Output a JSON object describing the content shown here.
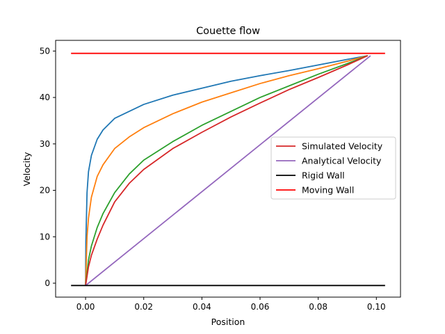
{
  "chart_data": {
    "type": "line",
    "title": "Couette flow",
    "xlabel": "Position",
    "ylabel": "Velocity",
    "xlim": [
      -0.0103,
      0.1083
    ],
    "ylim": [
      -3.0,
      52.3
    ],
    "xticks": [
      0.0,
      0.02,
      0.04,
      0.06,
      0.08,
      0.1
    ],
    "xtick_labels": [
      "0.00",
      "0.02",
      "0.04",
      "0.06",
      "0.08",
      "0.10"
    ],
    "yticks": [
      0,
      10,
      20,
      30,
      40,
      50
    ],
    "ytick_labels": [
      "0",
      "10",
      "20",
      "30",
      "40",
      "50"
    ],
    "grid": false,
    "legend_position": "center-right",
    "legend": [
      {
        "label": "Simulated Velocity",
        "color": "#d62728",
        "kind": "line"
      },
      {
        "label": "Analytical Velocity",
        "color": "#9467bd",
        "kind": "line"
      },
      {
        "label": "Rigid Wall",
        "color": "#000000",
        "kind": "line"
      },
      {
        "label": "Moving Wall",
        "color": "#ff0000",
        "kind": "line"
      }
    ],
    "series": [
      {
        "color": "#1f77b4",
        "x": [
          0.0,
          0.0001,
          0.0005,
          0.001,
          0.002,
          0.004,
          0.006,
          0.01,
          0.015,
          0.02,
          0.03,
          0.04,
          0.05,
          0.06,
          0.07,
          0.08,
          0.09,
          0.097
        ],
        "y": [
          -0.5,
          9.0,
          19.5,
          24.0,
          27.5,
          31.0,
          33.0,
          35.5,
          37.0,
          38.5,
          40.5,
          42.0,
          43.5,
          44.7,
          45.8,
          47.0,
          48.2,
          49.0
        ]
      },
      {
        "color": "#ff7f0e",
        "x": [
          0.0,
          0.0005,
          0.001,
          0.002,
          0.004,
          0.006,
          0.01,
          0.015,
          0.02,
          0.03,
          0.04,
          0.05,
          0.06,
          0.07,
          0.08,
          0.09,
          0.097
        ],
        "y": [
          -0.5,
          10.0,
          14.0,
          18.5,
          23.0,
          25.5,
          29.0,
          31.5,
          33.5,
          36.5,
          39.0,
          41.0,
          43.0,
          44.7,
          46.2,
          47.8,
          49.0
        ]
      },
      {
        "color": "#2ca02c",
        "x": [
          0.0,
          0.001,
          0.002,
          0.004,
          0.006,
          0.01,
          0.015,
          0.02,
          0.03,
          0.04,
          0.05,
          0.06,
          0.07,
          0.08,
          0.09,
          0.097
        ],
        "y": [
          -0.5,
          5.0,
          8.0,
          12.0,
          15.0,
          19.5,
          23.5,
          26.5,
          30.5,
          34.0,
          37.0,
          40.0,
          42.5,
          45.0,
          47.3,
          49.0
        ]
      },
      {
        "color": "#d62728",
        "x": [
          0.0,
          0.001,
          0.002,
          0.004,
          0.006,
          0.01,
          0.015,
          0.02,
          0.03,
          0.04,
          0.05,
          0.06,
          0.07,
          0.08,
          0.09,
          0.097
        ],
        "y": [
          -0.5,
          3.5,
          6.0,
          9.5,
          12.5,
          17.5,
          21.5,
          24.5,
          29.0,
          32.5,
          35.8,
          38.8,
          41.7,
          44.3,
          47.0,
          49.0
        ]
      },
      {
        "color": "#9467bd",
        "x": [
          0.0,
          0.098
        ],
        "y": [
          -0.5,
          49.0
        ]
      },
      {
        "color": "#000000",
        "x": [
          -0.005,
          0.103
        ],
        "y": [
          -0.5,
          -0.5
        ]
      },
      {
        "color": "#ff0000",
        "x": [
          -0.005,
          0.103
        ],
        "y": [
          49.5,
          49.5
        ]
      }
    ]
  }
}
